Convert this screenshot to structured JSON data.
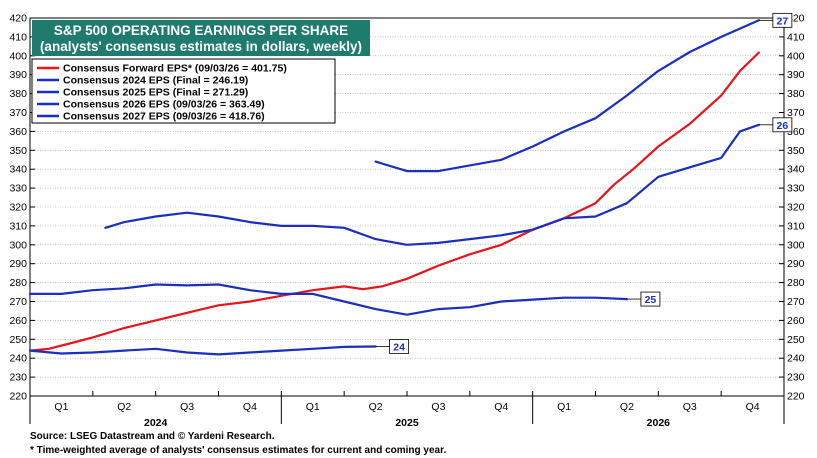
{
  "chart_data": {
    "type": "line",
    "title": "S&P 500 OPERATING EARNINGS PER SHARE",
    "subtitle": "(analysts' consensus estimates in dollars, weekly)",
    "ylim": [
      220,
      420
    ],
    "yticks": [
      220,
      230,
      240,
      250,
      260,
      270,
      280,
      290,
      300,
      310,
      320,
      330,
      340,
      350,
      360,
      370,
      380,
      390,
      400,
      410,
      420
    ],
    "xlim": [
      0,
      12
    ],
    "quarter_labels": [
      "Q1",
      "Q2",
      "Q3",
      "Q4",
      "Q1",
      "Q2",
      "Q3",
      "Q4",
      "Q1",
      "Q2",
      "Q3",
      "Q4"
    ],
    "year_labels": [
      {
        "label": "2024",
        "center": 2
      },
      {
        "label": "2025",
        "center": 6
      },
      {
        "label": "2026",
        "center": 10
      }
    ],
    "legend_position": "top-left",
    "colors": {
      "forward": "#e8141c",
      "consensus": "#1a2fbf",
      "title_bg": "#1e7b6e"
    },
    "series": [
      {
        "name": "Consensus Forward EPS* (09/03/26 = 401.75)",
        "color": "#e8141c",
        "points": [
          [
            0,
            244
          ],
          [
            0.3,
            245
          ],
          [
            0.6,
            247.5
          ],
          [
            1,
            251
          ],
          [
            1.5,
            256
          ],
          [
            2,
            260
          ],
          [
            2.5,
            264
          ],
          [
            3,
            268
          ],
          [
            3.5,
            270
          ],
          [
            4,
            273
          ],
          [
            4.5,
            276
          ],
          [
            5,
            278
          ],
          [
            5.3,
            276.5
          ],
          [
            5.6,
            278
          ],
          [
            6,
            282
          ],
          [
            6.5,
            289
          ],
          [
            7,
            295
          ],
          [
            7.5,
            300
          ],
          [
            8,
            308
          ],
          [
            8.5,
            314
          ],
          [
            9,
            322
          ],
          [
            9.3,
            332
          ],
          [
            9.6,
            340
          ],
          [
            10,
            352
          ],
          [
            10.5,
            364
          ],
          [
            11,
            379
          ],
          [
            11.3,
            392
          ],
          [
            11.6,
            401.75
          ]
        ]
      },
      {
        "name": "Consensus 2024 EPS (Final = 246.19)",
        "color": "#1a2fbf",
        "end_label": "24",
        "points": [
          [
            0,
            244
          ],
          [
            0.5,
            242.5
          ],
          [
            1,
            243
          ],
          [
            1.5,
            244
          ],
          [
            2,
            245
          ],
          [
            2.5,
            243
          ],
          [
            3,
            242
          ],
          [
            3.5,
            243
          ],
          [
            4,
            244
          ],
          [
            4.5,
            245
          ],
          [
            5,
            246
          ],
          [
            5.5,
            246.19
          ]
        ]
      },
      {
        "name": "Consensus 2025 EPS (Final = 271.29)",
        "color": "#1a2fbf",
        "end_label": "25",
        "points": [
          [
            0,
            274
          ],
          [
            0.5,
            274
          ],
          [
            1,
            276
          ],
          [
            1.5,
            277
          ],
          [
            2,
            279
          ],
          [
            2.5,
            278.5
          ],
          [
            3,
            279
          ],
          [
            3.5,
            276
          ],
          [
            4,
            274
          ],
          [
            4.5,
            274
          ],
          [
            5,
            270
          ],
          [
            5.5,
            266
          ],
          [
            6,
            263
          ],
          [
            6.5,
            266
          ],
          [
            7,
            267
          ],
          [
            7.5,
            270
          ],
          [
            8,
            271
          ],
          [
            8.5,
            272
          ],
          [
            9,
            272
          ],
          [
            9.5,
            271.29
          ]
        ]
      },
      {
        "name": "Consensus 2026 EPS (09/03/26 = 363.49)",
        "color": "#1a2fbf",
        "end_label": "26",
        "points": [
          [
            1.2,
            309
          ],
          [
            1.5,
            312
          ],
          [
            2,
            315
          ],
          [
            2.5,
            317
          ],
          [
            3,
            315
          ],
          [
            3.5,
            312
          ],
          [
            4,
            310
          ],
          [
            4.5,
            310
          ],
          [
            5,
            309
          ],
          [
            5.5,
            303
          ],
          [
            6,
            300
          ],
          [
            6.5,
            301
          ],
          [
            7,
            303
          ],
          [
            7.5,
            305
          ],
          [
            8,
            308
          ],
          [
            8.5,
            314
          ],
          [
            9,
            315
          ],
          [
            9.5,
            322
          ],
          [
            10,
            336
          ],
          [
            10.5,
            341
          ],
          [
            11,
            346
          ],
          [
            11.3,
            360
          ],
          [
            11.6,
            363.49
          ]
        ]
      },
      {
        "name": "Consensus 2027 EPS (09/03/26 = 418.76)",
        "color": "#1a2fbf",
        "end_label": "27",
        "points": [
          [
            5.5,
            344
          ],
          [
            6,
            339
          ],
          [
            6.5,
            339
          ],
          [
            7,
            342
          ],
          [
            7.5,
            345
          ],
          [
            8,
            352
          ],
          [
            8.5,
            360
          ],
          [
            9,
            367
          ],
          [
            9.5,
            379
          ],
          [
            10,
            392
          ],
          [
            10.5,
            402
          ],
          [
            11,
            410
          ],
          [
            11.6,
            418.76
          ]
        ]
      }
    ]
  },
  "footnotes": {
    "source": "Source: LSEG Datastream and © Yardeni Research.",
    "note": "* Time-weighted average of analysts' consensus estimates for current and coming year."
  }
}
